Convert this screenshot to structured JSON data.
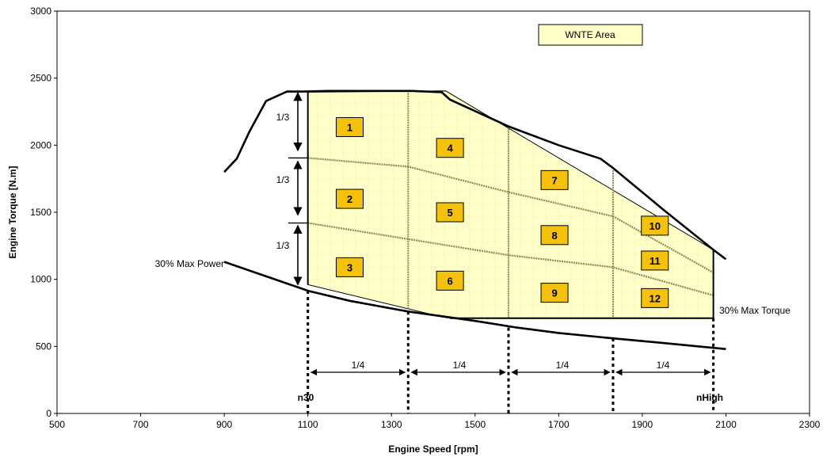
{
  "chart_data": {
    "type": "line",
    "title": "",
    "xlabel": "Engine Speed [rpm]",
    "ylabel": "Engine Torque [N.m]",
    "xlim": [
      500,
      2300
    ],
    "ylim": [
      0,
      3000
    ],
    "x_ticks": [
      500,
      700,
      900,
      1100,
      1300,
      1500,
      1700,
      1900,
      2100,
      2300
    ],
    "y_ticks": [
      0,
      500,
      1000,
      1500,
      2000,
      2500,
      3000
    ],
    "grid": false,
    "legend": {
      "label": "WNTE Area",
      "placement": "top-right"
    },
    "colors": {
      "area_fill": "#ffffc8",
      "zone_box": "#f4c20d",
      "curve": "#000000",
      "divider": "#8a8a5a"
    },
    "series": [
      {
        "role": "max-torque-curve",
        "x": [
          900,
          930,
          960,
          1000,
          1050,
          1090,
          1150,
          1250,
          1350,
          1420,
          1440,
          1580,
          1700,
          1800,
          1830,
          1950,
          2070,
          2100
        ],
        "y": [
          1800,
          1900,
          2100,
          2330,
          2400,
          2400,
          2405,
          2405,
          2405,
          2395,
          2340,
          2140,
          2000,
          1900,
          1830,
          1520,
          1220,
          1150
        ]
      },
      {
        "role": "30%-max-power-curve",
        "x": [
          1100,
          1200,
          1340,
          1500,
          1600,
          1700,
          1830,
          1950,
          2100
        ],
        "y": [
          915,
          840,
          760,
          690,
          640,
          600,
          560,
          525,
          480
        ]
      }
    ],
    "wnte_area": {
      "x": [
        1100,
        1100,
        1430,
        2070,
        2070,
        1830,
        1580,
        1440,
        1420,
        1100
      ],
      "y": [
        960,
        2395,
        2405,
        1220,
        710,
        710,
        710,
        710,
        720,
        960
      ]
    },
    "torque_dividers": [
      {
        "x": [
          1100,
          1340,
          1580,
          1830,
          2070
        ],
        "y": [
          1905,
          1840,
          1650,
          1470,
          1050
        ]
      },
      {
        "x": [
          1100,
          1340,
          1580,
          1830,
          2070
        ],
        "y": [
          1420,
          1300,
          1180,
          1090,
          880
        ]
      }
    ],
    "speed_dividers": [
      1100,
      1340,
      1580,
      1830,
      2070
    ],
    "zones": [
      {
        "label": "1",
        "x": 1200,
        "y": 2135
      },
      {
        "label": "4",
        "x": 1440,
        "y": 1980
      },
      {
        "label": "2",
        "x": 1200,
        "y": 1600
      },
      {
        "label": "7",
        "x": 1690,
        "y": 1740
      },
      {
        "label": "5",
        "x": 1440,
        "y": 1500
      },
      {
        "label": "10",
        "x": 1930,
        "y": 1400
      },
      {
        "label": "8",
        "x": 1690,
        "y": 1330
      },
      {
        "label": "11",
        "x": 1930,
        "y": 1140
      },
      {
        "label": "3",
        "x": 1200,
        "y": 1090
      },
      {
        "label": "6",
        "x": 1440,
        "y": 990
      },
      {
        "label": "9",
        "x": 1690,
        "y": 900
      },
      {
        "label": "12",
        "x": 1930,
        "y": 860
      }
    ],
    "annotations": {
      "max_power_30": "30% Max Power",
      "max_torque_30": "30% Max Torque",
      "n30": "n30",
      "nhigh": "nHigh",
      "third": "1/3",
      "quarter": "1/4"
    }
  }
}
